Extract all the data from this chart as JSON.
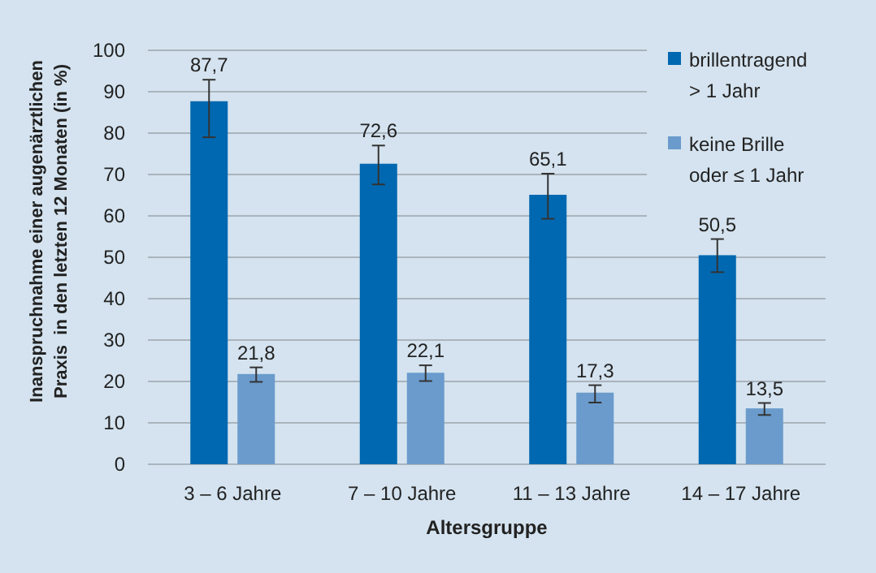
{
  "chart_data": {
    "type": "bar",
    "xlabel": "Altersgruppe",
    "ylabel": "Inanspruchnahme einer augenärztlichen\nPraxis  in den letzten 12 Monaten (in %)",
    "categories": [
      "3 – 6 Jahre",
      "7 – 10 Jahre",
      "11 – 13 Jahre",
      "14 – 17 Jahre"
    ],
    "series": [
      {
        "name": "brillentragend\n> 1 Jahr",
        "color": "#0068b0",
        "values": [
          87.7,
          72.6,
          65.1,
          50.5
        ],
        "value_labels": [
          "87,7",
          "72,6",
          "65,1",
          "50,5"
        ],
        "errors": [
          [
            79.0,
            92.9
          ],
          [
            67.6,
            77.0
          ],
          [
            59.3,
            70.2
          ],
          [
            46.4,
            54.4
          ]
        ]
      },
      {
        "name": "keine Brille\noder ≤ 1 Jahr",
        "color": "#6a9bcc",
        "values": [
          21.8,
          22.1,
          17.3,
          13.5
        ],
        "value_labels": [
          "21,8",
          "22,1",
          "17,3",
          "13,5"
        ],
        "errors": [
          [
            19.9,
            23.4
          ],
          [
            20.1,
            23.9
          ],
          [
            14.9,
            19.1
          ],
          [
            11.9,
            14.8
          ]
        ]
      }
    ],
    "ylim": [
      0,
      100
    ],
    "yticks": [
      0,
      10,
      20,
      30,
      40,
      50,
      60,
      70,
      80,
      90,
      100
    ],
    "grid": "y",
    "legend": "top right"
  }
}
